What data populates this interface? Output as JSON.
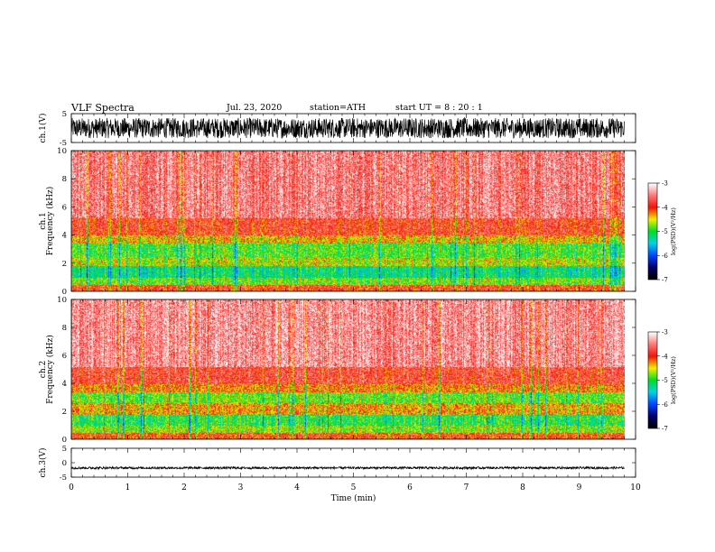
{
  "header": {
    "title": "VLF Spectra",
    "date": "Jul. 23, 2020",
    "station": "station=ATH",
    "start": "start UT = 8 : 20 : 1"
  },
  "chart_data": [
    {
      "type": "line",
      "panel": "ch1-waveform",
      "ylabel": "ch.1(V)",
      "ylim": [
        -5,
        5
      ],
      "yticks": [
        "5",
        "-5"
      ],
      "xlim": [
        0,
        10
      ],
      "data_extent_min": 9.8,
      "series": [
        {
          "amplitude_range": [
            -3.5,
            3.5
          ]
        }
      ]
    },
    {
      "type": "heatmap",
      "panel": "ch1-spectrogram",
      "ylabel_lines": [
        "ch.1",
        "Frequency (kHz)"
      ],
      "ylim": [
        0,
        10
      ],
      "yticks": [
        "0",
        "2",
        "4",
        "6",
        "8",
        "10"
      ],
      "xlim": [
        0,
        10
      ],
      "data_extent_min": 9.8,
      "colorbar": {
        "label": "log(PSD)(V²/Hz)",
        "range": [
          -7,
          -3
        ],
        "ticks": [
          "-3",
          "-4",
          "-5",
          "-6",
          "-7"
        ]
      },
      "bands_kHz_logPSD": [
        {
          "from": 0.0,
          "to": 0.5,
          "level": -4.0
        },
        {
          "from": 0.5,
          "to": 1.0,
          "level": -4.8
        },
        {
          "from": 1.0,
          "to": 1.8,
          "level": -5.2
        },
        {
          "from": 1.8,
          "to": 2.4,
          "level": -4.6
        },
        {
          "from": 2.4,
          "to": 3.4,
          "level": -4.9
        },
        {
          "from": 3.4,
          "to": 4.0,
          "level": -4.4
        },
        {
          "from": 4.0,
          "to": 5.2,
          "level": -3.9
        },
        {
          "from": 5.2,
          "to": 10.0,
          "level": -3.5
        }
      ]
    },
    {
      "type": "heatmap",
      "panel": "ch2-spectrogram",
      "ylabel_lines": [
        "ch.2",
        "Frequency (kHz)"
      ],
      "ylim": [
        0,
        10
      ],
      "yticks": [
        "0",
        "2",
        "4",
        "6",
        "8",
        "10"
      ],
      "xlim": [
        0,
        10
      ],
      "data_extent_min": 9.8,
      "colorbar": {
        "label": "log(PSD)(V²/Hz)",
        "range": [
          -7,
          -3
        ],
        "ticks": [
          "-3",
          "-4",
          "-5",
          "-6",
          "-7"
        ]
      },
      "bands_kHz_logPSD": [
        {
          "from": 0.0,
          "to": 0.5,
          "level": -4.0
        },
        {
          "from": 0.5,
          "to": 1.0,
          "level": -4.7
        },
        {
          "from": 1.0,
          "to": 1.8,
          "level": -5.0
        },
        {
          "from": 1.8,
          "to": 2.6,
          "level": -4.3
        },
        {
          "from": 2.6,
          "to": 3.4,
          "level": -4.8
        },
        {
          "from": 3.4,
          "to": 4.0,
          "level": -4.2
        },
        {
          "from": 4.0,
          "to": 5.2,
          "level": -3.8
        },
        {
          "from": 5.2,
          "to": 10.0,
          "level": -3.4
        }
      ]
    },
    {
      "type": "line",
      "panel": "ch3-waveform",
      "ylabel": "ch.3(V)",
      "ylim": [
        -5,
        5
      ],
      "yticks": [
        "5",
        "0",
        "-5"
      ],
      "xlim": [
        0,
        10
      ],
      "xlabel": "Time (min)",
      "xticks": [
        "0",
        "1",
        "2",
        "3",
        "4",
        "5",
        "6",
        "7",
        "8",
        "9",
        "10"
      ],
      "data_extent_min": 9.8,
      "series": [
        {
          "center": -1.8,
          "amplitude_range": [
            -0.4,
            0.4
          ]
        }
      ]
    }
  ]
}
